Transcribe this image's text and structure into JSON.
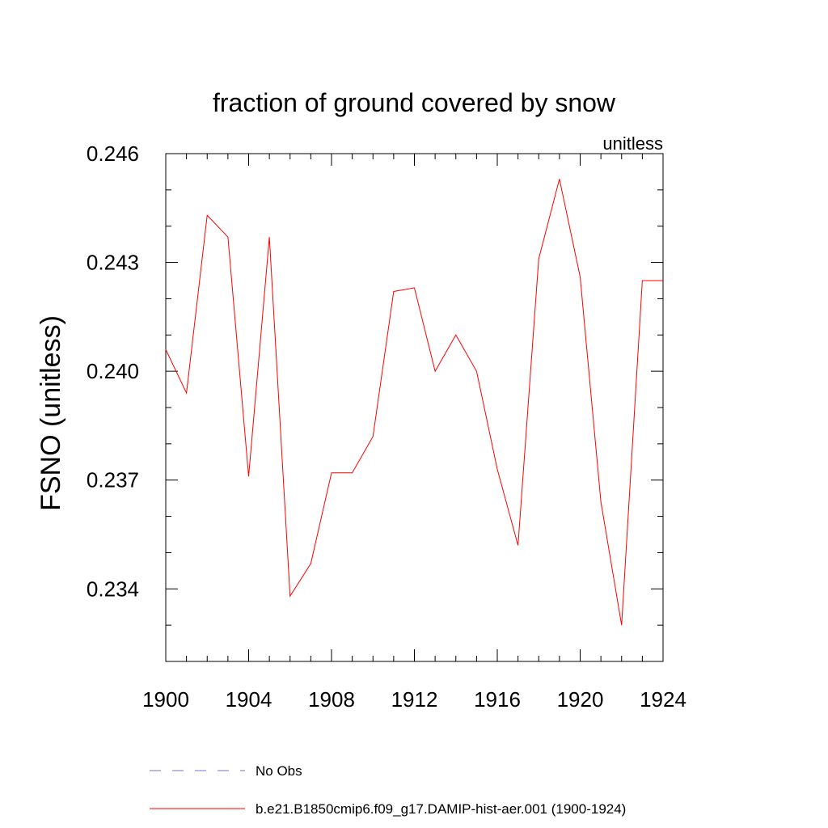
{
  "chart_data": {
    "type": "line",
    "title": "fraction of ground covered by snow",
    "units_label": "unitless",
    "xlabel": "",
    "ylabel": "FSNO  (unitless)",
    "xlim": [
      1900,
      1924
    ],
    "ylim": [
      0.232,
      0.246
    ],
    "x_ticks": [
      "1900",
      "1904",
      "1908",
      "1912",
      "1916",
      "1920",
      "1924"
    ],
    "y_ticks": [
      "0.234",
      "0.237",
      "0.240",
      "0.243",
      "0.246"
    ],
    "x": [
      1900,
      1901,
      1902,
      1903,
      1904,
      1905,
      1906,
      1907,
      1908,
      1909,
      1910,
      1911,
      1912,
      1913,
      1914,
      1915,
      1916,
      1917,
      1918,
      1919,
      1920,
      1921,
      1922,
      1923,
      1924
    ],
    "series": [
      {
        "name": "b.e21.B1850cmip6.f09_g17.DAMIP-hist-aer.001 (1900-1924)",
        "color": "#ff0000",
        "style": "solid",
        "values": [
          0.2406,
          0.2394,
          0.2443,
          0.2437,
          0.2371,
          0.2437,
          0.2338,
          0.2347,
          0.2372,
          0.2372,
          0.2382,
          0.2422,
          0.2423,
          0.24,
          0.241,
          0.24,
          0.2373,
          0.2352,
          0.2431,
          0.2453,
          0.2426,
          0.2364,
          0.233,
          0.2425,
          0.2425
        ]
      }
    ],
    "legend": [
      {
        "label": "No Obs",
        "color": "#7070c8",
        "style": "dashed"
      },
      {
        "label": "b.e21.B1850cmip6.f09_g17.DAMIP-hist-aer.001 (1900-1924)",
        "color": "#ff0000",
        "style": "solid"
      }
    ]
  }
}
